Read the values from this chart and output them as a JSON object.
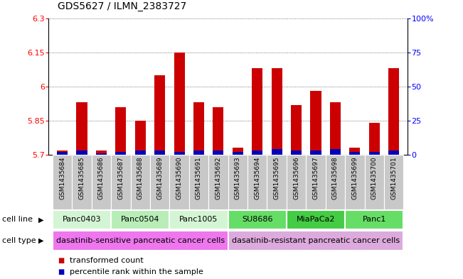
{
  "title": "GDS5627 / ILMN_2383727",
  "samples": [
    "GSM1435684",
    "GSM1435685",
    "GSM1435686",
    "GSM1435687",
    "GSM1435688",
    "GSM1435689",
    "GSM1435690",
    "GSM1435691",
    "GSM1435692",
    "GSM1435693",
    "GSM1435694",
    "GSM1435695",
    "GSM1435696",
    "GSM1435697",
    "GSM1435698",
    "GSM1435699",
    "GSM1435700",
    "GSM1435701"
  ],
  "transformed_count": [
    5.72,
    5.93,
    5.72,
    5.91,
    5.85,
    6.05,
    6.15,
    5.93,
    5.91,
    5.73,
    6.08,
    6.08,
    5.92,
    5.98,
    5.93,
    5.73,
    5.84,
    6.08
  ],
  "percentile_rank": [
    2,
    3,
    1,
    2,
    3,
    3,
    2,
    3,
    3,
    2,
    3,
    4,
    3,
    3,
    4,
    2,
    2,
    3
  ],
  "cell_lines": [
    {
      "name": "Panc0403",
      "start": 0,
      "end": 3,
      "color": "#d4f5d4"
    },
    {
      "name": "Panc0504",
      "start": 3,
      "end": 6,
      "color": "#b8edb8"
    },
    {
      "name": "Panc1005",
      "start": 6,
      "end": 9,
      "color": "#d4f5d4"
    },
    {
      "name": "SU8686",
      "start": 9,
      "end": 12,
      "color": "#66dd66"
    },
    {
      "name": "MiaPaCa2",
      "start": 12,
      "end": 15,
      "color": "#44cc44"
    },
    {
      "name": "Panc1",
      "start": 15,
      "end": 18,
      "color": "#66dd66"
    }
  ],
  "cell_types": [
    {
      "name": "dasatinib-sensitive pancreatic cancer cells",
      "start": 0,
      "end": 9,
      "color": "#ee77ee"
    },
    {
      "name": "dasatinib-resistant pancreatic cancer cells",
      "start": 9,
      "end": 18,
      "color": "#ddaadd"
    }
  ],
  "ylim_left": [
    5.7,
    6.3
  ],
  "ylim_right": [
    0,
    100
  ],
  "yticks_left": [
    5.7,
    5.85,
    6.0,
    6.15,
    6.3
  ],
  "yticks_right": [
    0,
    25,
    50,
    75,
    100
  ],
  "ytick_labels_left": [
    "5.7",
    "5.85",
    "6",
    "6.15",
    "6.3"
  ],
  "ytick_labels_right": [
    "0",
    "25",
    "50",
    "75",
    "100%"
  ],
  "bar_color_red": "#cc0000",
  "bar_color_blue": "#0000bb",
  "grid_color": "#555555",
  "background_color": "#ffffff",
  "label_cell_line": "cell line",
  "label_cell_type": "cell type",
  "legend_red": "transformed count",
  "legend_blue": "percentile rank within the sample",
  "tick_label_bg": "#c8c8c8",
  "percentile_scale": 100
}
